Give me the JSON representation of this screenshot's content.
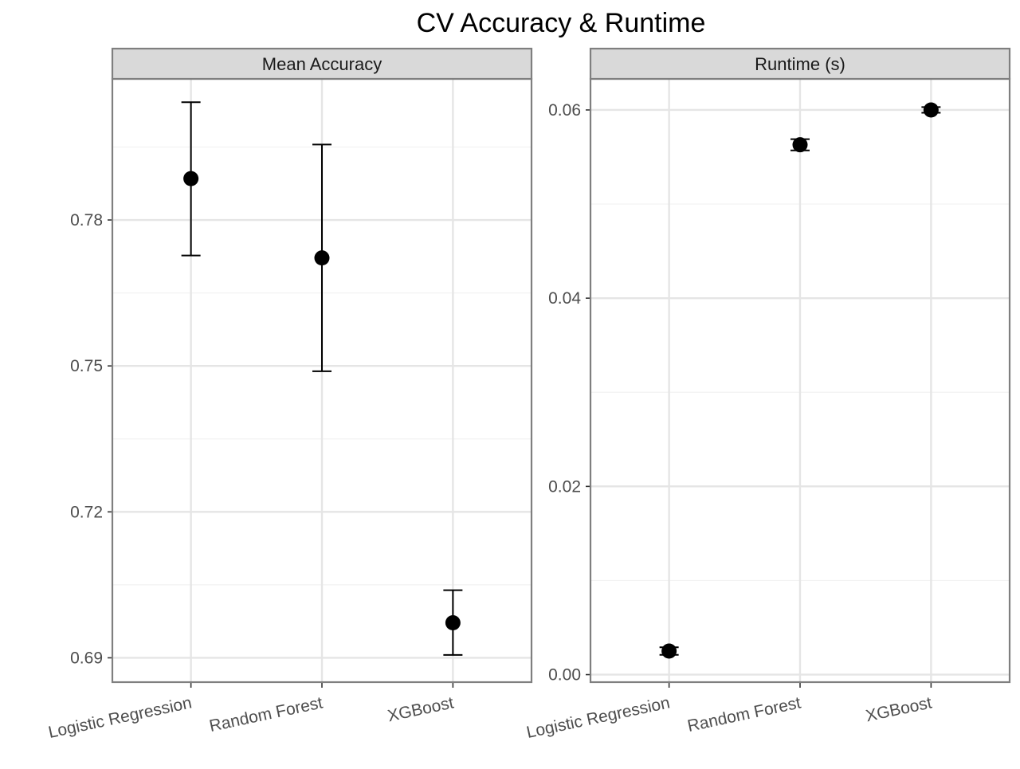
{
  "chart_data": {
    "type": "scatter",
    "title": "CV Accuracy & Runtime",
    "categories": [
      "Logistic Regression",
      "Random Forest",
      "XGBoost"
    ],
    "facets": [
      {
        "label": "Mean Accuracy",
        "yticks": [
          "0.69",
          "0.72",
          "0.75",
          "0.78"
        ],
        "ylim": [
          0.685,
          0.809
        ],
        "points": [
          {
            "category": "Logistic Regression",
            "value": 0.7885,
            "low": 0.7727,
            "high": 0.8042
          },
          {
            "category": "Random Forest",
            "value": 0.7722,
            "low": 0.7489,
            "high": 0.7955
          },
          {
            "category": "XGBoost",
            "value": 0.6972,
            "low": 0.6906,
            "high": 0.7039
          }
        ]
      },
      {
        "label": "Runtime (s)",
        "yticks": [
          "0.00",
          "0.02",
          "0.04",
          "0.06"
        ],
        "ylim": [
          -0.0008,
          0.0633
        ],
        "points": [
          {
            "category": "Logistic Regression",
            "value": 0.0025,
            "low": 0.0021,
            "high": 0.0029
          },
          {
            "category": "Random Forest",
            "value": 0.0563,
            "low": 0.0557,
            "high": 0.0569
          },
          {
            "category": "XGBoost",
            "value": 0.06,
            "low": 0.0597,
            "high": 0.0603
          }
        ]
      }
    ],
    "grid": true,
    "legend": "none"
  }
}
